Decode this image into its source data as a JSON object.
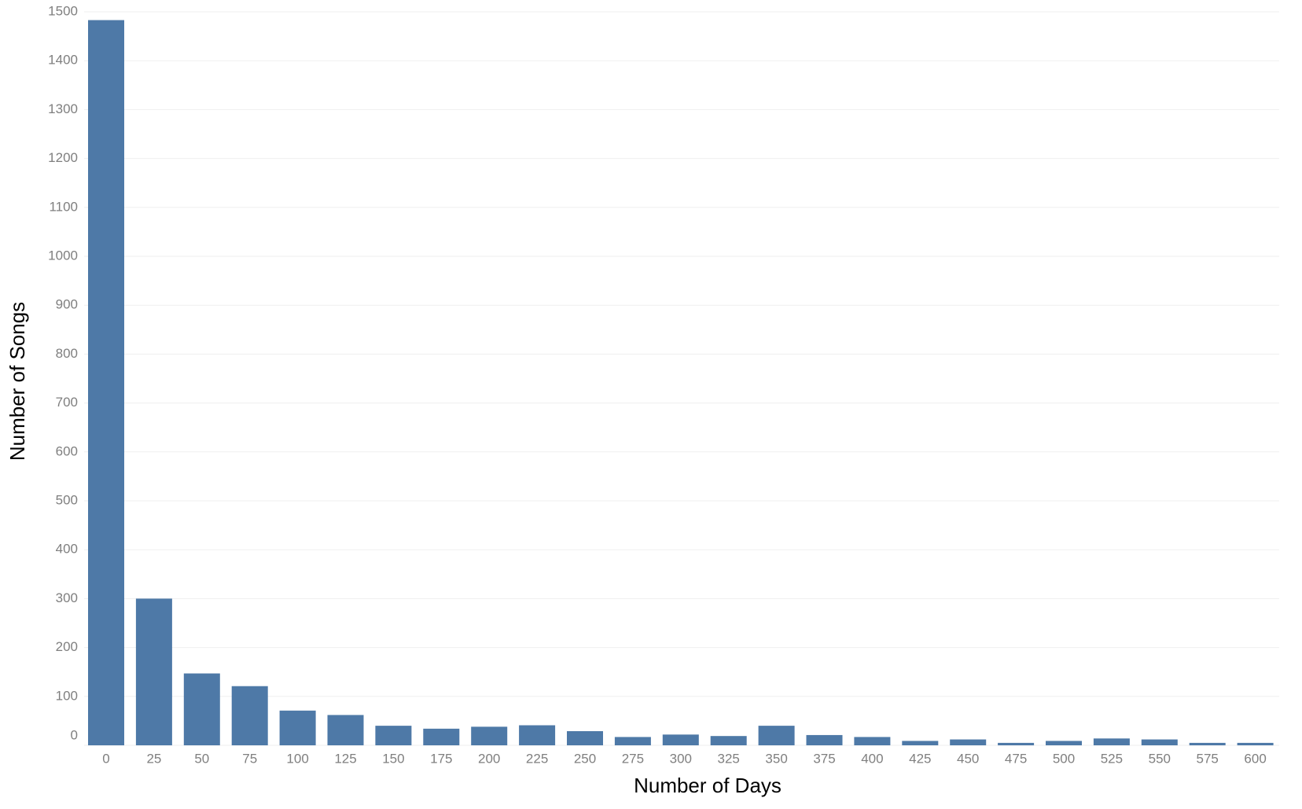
{
  "chart_data": {
    "type": "bar",
    "xlabel": "Number of Days",
    "ylabel": "Number of Songs",
    "categories": [
      "0",
      "25",
      "50",
      "75",
      "100",
      "125",
      "150",
      "175",
      "200",
      "225",
      "250",
      "275",
      "300",
      "325",
      "350",
      "375",
      "400",
      "425",
      "450",
      "475",
      "500",
      "525",
      "550",
      "575",
      "600"
    ],
    "values": [
      1483,
      300,
      147,
      121,
      71,
      62,
      40,
      34,
      38,
      41,
      29,
      17,
      22,
      19,
      40,
      21,
      17,
      9,
      12,
      5,
      9,
      14,
      12,
      5,
      5
    ],
    "color": "#4e79a7",
    "ylim": [
      0,
      1500
    ],
    "yticks": [
      0,
      100,
      200,
      300,
      400,
      500,
      600,
      700,
      800,
      900,
      1000,
      1100,
      1200,
      1300,
      1400,
      1500
    ],
    "grid": true
  }
}
